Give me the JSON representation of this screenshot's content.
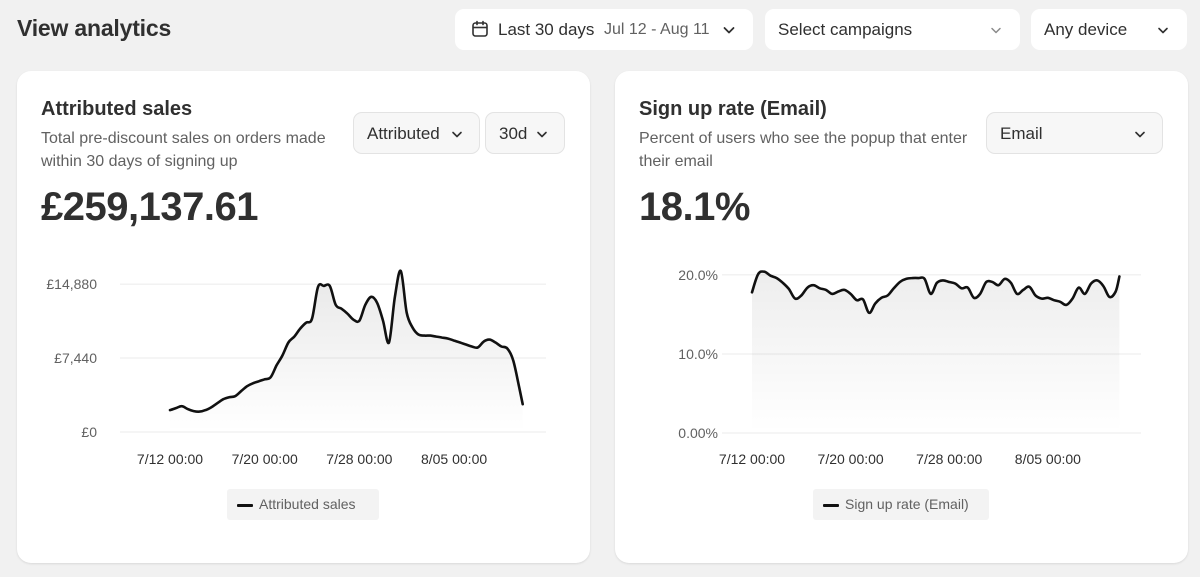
{
  "header": {
    "title": "View analytics",
    "date_filter": {
      "label": "Last 30 days",
      "range": "Jul 12 - Aug 11",
      "icon": "calendar-icon"
    },
    "campaigns_filter": {
      "label": "Select campaigns"
    },
    "device_filter": {
      "label": "Any device"
    }
  },
  "cards": {
    "sales": {
      "title": "Attributed sales",
      "subtitle": "Total pre-discount sales on orders made within 30 days of signing up",
      "metric": "£259,137.61",
      "mode_select": "Attributed",
      "window_select": "30d",
      "legend": "Attributed sales"
    },
    "signup": {
      "title": "Sign up rate (Email)",
      "subtitle": "Percent of users who see the popup that enter their email",
      "metric": "18.1%",
      "type_select": "Email",
      "legend": "Sign up rate (Email)"
    }
  },
  "colors": {
    "line": "#111111",
    "grid": "#ebebeb",
    "text": "#303030",
    "muted": "#616161"
  },
  "chart_data": [
    {
      "type": "line",
      "name": "Attributed sales",
      "title": "",
      "xlabel": "",
      "ylabel": "",
      "x_ticks": [
        "7/12 00:00",
        "7/20 00:00",
        "7/28 00:00",
        "8/05 00:00"
      ],
      "y_ticks": [
        "£0",
        "£7,440",
        "£14,880"
      ],
      "ylim": [
        0,
        16500
      ],
      "xlim": [
        0,
        30.5
      ],
      "legend": "bottom-center",
      "grid": true,
      "x": [
        0,
        0.5,
        1,
        1.5,
        2,
        2.5,
        3,
        3.5,
        4,
        4.5,
        5,
        5.5,
        6,
        6.5,
        7,
        7.5,
        8,
        8.5,
        9,
        9.5,
        10,
        10.5,
        11,
        11.5,
        12,
        12.5,
        13,
        13.5,
        14,
        14.5,
        15,
        15.5,
        16,
        16.5,
        17,
        17.5,
        18,
        18.5,
        19,
        19.5,
        20,
        20.5,
        21,
        21.5,
        22,
        22.5,
        23,
        23.5,
        24,
        24.5,
        25,
        25.5,
        26,
        26.5,
        27,
        27.5,
        28,
        28.5,
        29,
        29.5,
        29.8
      ],
      "y": [
        2200,
        2400,
        2600,
        2300,
        2100,
        2050,
        2200,
        2500,
        2900,
        3300,
        3500,
        3600,
        4100,
        4600,
        4900,
        5100,
        5300,
        5500,
        6700,
        7700,
        9000,
        9600,
        10400,
        11000,
        11400,
        14600,
        14700,
        14700,
        12800,
        12400,
        11900,
        11300,
        11200,
        12800,
        13600,
        13000,
        11200,
        9000,
        13600,
        16200,
        12000,
        10500,
        9800,
        9700,
        9700,
        9600,
        9500,
        9400,
        9200,
        9000,
        8800,
        8600,
        8500,
        9100,
        9300,
        9000,
        8600,
        8400,
        7200,
        4500,
        2800
      ]
    },
    {
      "type": "line",
      "name": "Sign up rate (Email)",
      "title": "",
      "xlabel": "",
      "ylabel": "",
      "x_ticks": [
        "7/12 00:00",
        "7/20 00:00",
        "7/28 00:00",
        "8/05 00:00"
      ],
      "y_ticks": [
        "0.00%",
        "10.0%",
        "20.0%"
      ],
      "ylim": [
        0,
        21
      ],
      "xlim": [
        0,
        30.5
      ],
      "legend": "bottom-center",
      "grid": true,
      "x": [
        0,
        0.5,
        1,
        1.5,
        2,
        2.5,
        3,
        3.5,
        4,
        4.5,
        5,
        5.5,
        6,
        6.5,
        7,
        7.5,
        8,
        8.5,
        9,
        9.5,
        10,
        10.5,
        11,
        11.5,
        12,
        12.5,
        13,
        13.5,
        14,
        14.5,
        15,
        15.5,
        16,
        16.5,
        17,
        17.5,
        18,
        18.5,
        19,
        19.5,
        20,
        20.5,
        21,
        21.5,
        22,
        22.5,
        23,
        23.5,
        24,
        24.5,
        25,
        25.5,
        26,
        26.5,
        27,
        27.5,
        28,
        28.5,
        29,
        29.5,
        29.8
      ],
      "y": [
        17.8,
        20.1,
        20.4,
        19.9,
        19.6,
        19.0,
        18.2,
        17.0,
        17.4,
        18.4,
        18.7,
        18.3,
        18.1,
        17.6,
        17.9,
        18.1,
        17.6,
        16.8,
        16.9,
        15.2,
        16.4,
        17.1,
        17.4,
        18.3,
        19.1,
        19.5,
        19.6,
        19.6,
        19.5,
        17.6,
        19.0,
        19.3,
        19.1,
        18.9,
        18.3,
        18.4,
        17.1,
        17.6,
        19.1,
        19.1,
        18.7,
        19.5,
        19.0,
        17.6,
        18.1,
        18.5,
        17.4,
        17.0,
        17.1,
        16.8,
        16.6,
        16.2,
        17.0,
        18.4,
        17.6,
        18.9,
        19.3,
        18.6,
        17.2,
        17.9,
        19.8
      ]
    }
  ]
}
